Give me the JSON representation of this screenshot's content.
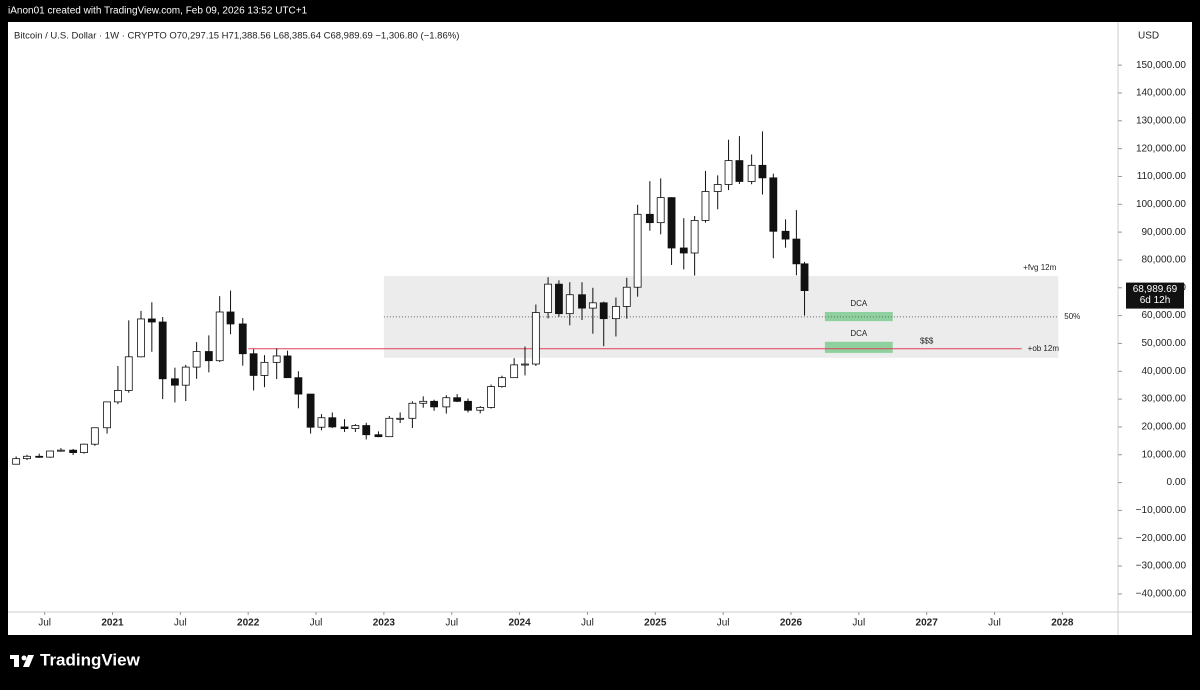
{
  "header": "iAnon01 created with TradingView.com, Feb 09, 2026 13:52 UTC+1",
  "footer": "TradingView",
  "chart_data": {
    "type": "candlestick",
    "legend": "Bitcoin / U.S. Dollar · 1W · CRYPTO  O70,297.15 H71,388.56 L68,385.64 C68,989.69 −1,306.80 (−1.86%)",
    "currency": "USD",
    "up_color": "#ffffff",
    "down_color": "#111111",
    "wick_color": "#111111",
    "x": [
      2020.29,
      2020.37,
      2020.46,
      2020.54,
      2020.62,
      2020.71,
      2020.79,
      2020.87,
      2020.96,
      2021.04,
      2021.12,
      2021.21,
      2021.29,
      2021.37,
      2021.46,
      2021.54,
      2021.62,
      2021.71,
      2021.79,
      2021.87,
      2021.96,
      2022.04,
      2022.12,
      2022.21,
      2022.29,
      2022.37,
      2022.46,
      2022.54,
      2022.62,
      2022.71,
      2022.79,
      2022.87,
      2022.96,
      2023.04,
      2023.12,
      2023.21,
      2023.29,
      2023.37,
      2023.46,
      2023.54,
      2023.62,
      2023.71,
      2023.79,
      2023.87,
      2023.96,
      2024.04,
      2024.12,
      2024.21,
      2024.29,
      2024.37,
      2024.46,
      2024.54,
      2024.62,
      2024.71,
      2024.79,
      2024.87,
      2024.96,
      2025.04,
      2025.12,
      2025.21,
      2025.29,
      2025.37,
      2025.46,
      2025.54,
      2025.62,
      2025.71,
      2025.79,
      2025.87,
      2025.96,
      2026.04,
      2026.1
    ],
    "open": [
      6600,
      8600,
      9450,
      9150,
      11350,
      11650,
      10780,
      13800,
      19700,
      29000,
      33100,
      45200,
      58800,
      57700,
      37300,
      35000,
      41500,
      47100,
      43800,
      61300,
      57000,
      46300,
      38500,
      43200,
      45500,
      37700,
      31800,
      19900,
      23300,
      20000,
      19400,
      20500,
      17200,
      16500,
      23100,
      23100,
      28500,
      29200,
      27200,
      30500,
      29200,
      26000,
      27000,
      34500,
      37700,
      42300,
      42600,
      61100,
      71300,
      60700,
      67500,
      62700,
      64600,
      58900,
      63300,
      70200,
      96400,
      93400,
      102400,
      84300,
      82500,
      94200,
      104600,
      107100,
      115700,
      108200,
      114000,
      109500,
      90300,
      87500,
      78600
    ],
    "high": [
      9400,
      10000,
      10400,
      11400,
      12400,
      12100,
      14000,
      19800,
      29000,
      41900,
      58300,
      61700,
      64800,
      59500,
      41300,
      42300,
      50500,
      52900,
      67000,
      69000,
      59100,
      47900,
      45800,
      48200,
      47400,
      40000,
      31900,
      24600,
      25200,
      22800,
      21000,
      21500,
      18400,
      23900,
      25200,
      29200,
      31000,
      29800,
      31400,
      31800,
      30200,
      27500,
      35200,
      38400,
      44700,
      48900,
      64000,
      73800,
      72700,
      72000,
      72000,
      70000,
      65000,
      66500,
      73600,
      99800,
      108300,
      109300,
      102500,
      95000,
      95800,
      112000,
      110400,
      123200,
      124500,
      117900,
      126200,
      111000,
      94600,
      97900,
      79300
    ],
    "low": [
      6500,
      8100,
      8900,
      8900,
      11100,
      9900,
      10400,
      13200,
      17600,
      28200,
      32300,
      45000,
      47000,
      30000,
      28800,
      29300,
      37300,
      39600,
      43300,
      53300,
      42000,
      33100,
      34300,
      37200,
      37600,
      26700,
      17600,
      18800,
      19600,
      18200,
      18200,
      15500,
      16300,
      16500,
      21400,
      19600,
      26900,
      25800,
      24800,
      28900,
      25200,
      24900,
      26600,
      34100,
      37600,
      38500,
      41900,
      59000,
      59600,
      56500,
      58400,
      53500,
      49000,
      52500,
      58900,
      66800,
      90500,
      89200,
      78200,
      76600,
      74400,
      93400,
      98200,
      105100,
      107300,
      107200,
      103500,
      80600,
      84400,
      74500,
      60000
    ],
    "close": [
      8600,
      9450,
      9150,
      11350,
      11650,
      10780,
      13800,
      19700,
      29000,
      33100,
      45200,
      58800,
      57700,
      37300,
      35000,
      41500,
      47100,
      43800,
      61300,
      57000,
      46300,
      38500,
      43200,
      45500,
      37700,
      31800,
      19900,
      23300,
      20000,
      19400,
      20500,
      17200,
      16500,
      23100,
      23100,
      28500,
      29200,
      27200,
      30500,
      29200,
      26000,
      27000,
      34500,
      37700,
      42300,
      42600,
      61100,
      71300,
      60700,
      67500,
      62700,
      64600,
      58900,
      63300,
      70200,
      96400,
      93400,
      102400,
      84300,
      82500,
      94200,
      104600,
      107100,
      115700,
      108200,
      114000,
      109500,
      90300,
      87500,
      78600,
      68989.69
    ],
    "last_price": {
      "value": 68989.69,
      "label": "68,989.69"
    },
    "countdown": "6d 12h",
    "xlim": [
      2020.23,
      2028.41
    ],
    "xticks": [
      {
        "value": 2020.5,
        "label": "Jul"
      },
      2021,
      {
        "value": 2021.5,
        "label": "Jul"
      },
      2022,
      {
        "value": 2022.5,
        "label": "Jul"
      },
      2023,
      {
        "value": 2023.5,
        "label": "Jul"
      },
      2024,
      {
        "value": 2024.5,
        "label": "Jul"
      },
      2025,
      {
        "value": 2025.5,
        "label": "Jul"
      },
      2026,
      {
        "value": 2026.5,
        "label": "Jul"
      },
      2027,
      {
        "value": 2027.5,
        "label": "Jul"
      },
      2028
    ],
    "ylim": [
      -46500,
      165500
    ],
    "yticks": [
      {
        "value": 150000,
        "label": "150,000.00"
      },
      {
        "value": 140000,
        "label": "140,000.00"
      },
      {
        "value": 130000,
        "label": "130,000.00"
      },
      {
        "value": 120000,
        "label": "120,000.00"
      },
      {
        "value": 110000,
        "label": "110,000.00"
      },
      {
        "value": 100000,
        "label": "100,000.00"
      },
      {
        "value": 90000,
        "label": "90,000.00"
      },
      {
        "value": 80000,
        "label": "80,000.00"
      },
      {
        "value": 70000,
        "label": "70,000.00"
      },
      {
        "value": 60000,
        "label": "60,000.00"
      },
      {
        "value": 50000,
        "label": "50,000.00"
      },
      {
        "value": 40000,
        "label": "40,000.00"
      },
      {
        "value": 30000,
        "label": "30,000.00"
      },
      {
        "value": 20000,
        "label": "20,000.00"
      },
      {
        "value": 10000,
        "label": "10,000.00"
      },
      {
        "value": 0,
        "label": "0.00"
      },
      {
        "value": -10000,
        "label": "−10,000.00"
      },
      {
        "value": -20000,
        "label": "−20,000.00"
      },
      {
        "value": -30000,
        "label": "−30,000.00"
      },
      {
        "value": -40000,
        "label": "−40,000.00"
      }
    ],
    "zones": [
      {
        "label": "+fvg 12m",
        "x": [
          2023.0,
          2027.97
        ],
        "y": [
          44850,
          74270
        ],
        "color": "#ececec"
      },
      {
        "label": "DCA",
        "x": [
          2026.25,
          2026.75
        ],
        "y": [
          58000,
          61300
        ],
        "color": "#8fd19e"
      },
      {
        "label": "DCA",
        "x": [
          2026.25,
          2026.75
        ],
        "y": [
          46600,
          50600
        ],
        "color": "#8fd19e"
      }
    ],
    "hlines": [
      {
        "label": "50%",
        "value": 59560,
        "x": [
          2023.0,
          2027.97
        ],
        "color": "#666666",
        "dashed": true
      },
      {
        "label": "+ob 12m",
        "value": 48080,
        "x": [
          2022.0,
          2027.7
        ],
        "color": "#e0405a",
        "dashed": false
      }
    ],
    "texts": [
      {
        "label": "$$$",
        "x": 2027.0,
        "y": 50800
      }
    ]
  }
}
